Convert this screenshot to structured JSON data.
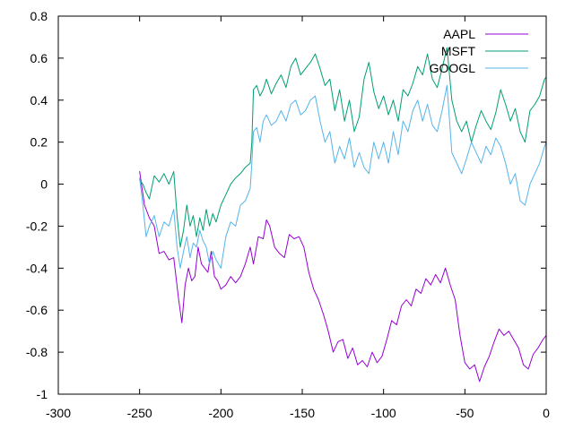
{
  "chart_data": {
    "type": "line",
    "title": "",
    "xlabel": "",
    "ylabel": "",
    "xlim": [
      -300,
      0
    ],
    "ylim": [
      -1,
      0.8
    ],
    "grid": false,
    "legend_position": "top-right",
    "x_ticks": [
      -300,
      -250,
      -200,
      -150,
      -100,
      -50,
      0
    ],
    "x_tick_labels": [
      "-300",
      "-250",
      "-200",
      "-150",
      "-100",
      "-50",
      "0"
    ],
    "y_ticks": [
      0.8,
      0.6,
      0.4,
      0.2,
      0,
      -0.2,
      -0.4,
      -0.6,
      -0.8,
      -1
    ],
    "y_tick_labels": [
      "0.8",
      "0.6",
      "0.4",
      "0.2",
      "0",
      "-0.2",
      "-0.4",
      "-0.6",
      "-0.8",
      "-1"
    ],
    "series": [
      {
        "name": "AAPL",
        "color": "#9400d3",
        "x": [
          -250,
          -247,
          -244,
          -241,
          -238,
          -235,
          -232,
          -229,
          -226,
          -224,
          -222,
          -220,
          -218,
          -216,
          -214,
          -212,
          -210,
          -208,
          -206,
          -204,
          -202,
          -200,
          -197,
          -194,
          -191,
          -188,
          -185,
          -182,
          -180,
          -177,
          -174,
          -172,
          -170,
          -167,
          -164,
          -161,
          -158,
          -155,
          -152,
          -149,
          -146,
          -143,
          -140,
          -137,
          -134,
          -131,
          -128,
          -125,
          -122,
          -119,
          -116,
          -113,
          -110,
          -107,
          -104,
          -101,
          -98,
          -95,
          -92,
          -89,
          -86,
          -83,
          -80,
          -77,
          -74,
          -71,
          -68,
          -65,
          -62,
          -59,
          -56,
          -53,
          -50,
          -47,
          -44,
          -41,
          -38,
          -35,
          -32,
          -29,
          -26,
          -23,
          -20,
          -17,
          -14,
          -11,
          -8,
          -5,
          -2,
          0
        ],
        "y": [
          0.06,
          -0.1,
          -0.16,
          -0.2,
          -0.33,
          -0.32,
          -0.36,
          -0.35,
          -0.55,
          -0.66,
          -0.48,
          -0.4,
          -0.46,
          -0.44,
          -0.3,
          -0.38,
          -0.4,
          -0.42,
          -0.32,
          -0.44,
          -0.46,
          -0.5,
          -0.48,
          -0.44,
          -0.47,
          -0.44,
          -0.38,
          -0.3,
          -0.38,
          -0.25,
          -0.26,
          -0.17,
          -0.2,
          -0.3,
          -0.33,
          -0.35,
          -0.24,
          -0.26,
          -0.25,
          -0.3,
          -0.42,
          -0.5,
          -0.55,
          -0.62,
          -0.7,
          -0.8,
          -0.75,
          -0.74,
          -0.83,
          -0.78,
          -0.86,
          -0.84,
          -0.87,
          -0.8,
          -0.85,
          -0.82,
          -0.74,
          -0.65,
          -0.67,
          -0.58,
          -0.55,
          -0.58,
          -0.5,
          -0.52,
          -0.45,
          -0.48,
          -0.43,
          -0.47,
          -0.4,
          -0.48,
          -0.55,
          -0.72,
          -0.85,
          -0.88,
          -0.86,
          -0.94,
          -0.87,
          -0.82,
          -0.75,
          -0.69,
          -0.72,
          -0.7,
          -0.74,
          -0.78,
          -0.86,
          -0.88,
          -0.81,
          -0.78,
          -0.74,
          -0.72
        ]
      },
      {
        "name": "MSFT",
        "color": "#009e73",
        "x": [
          -250,
          -248,
          -246,
          -244,
          -241,
          -238,
          -235,
          -232,
          -229,
          -227,
          -225,
          -223,
          -221,
          -219,
          -217,
          -215,
          -213,
          -211,
          -209,
          -207,
          -205,
          -203,
          -200,
          -197,
          -194,
          -191,
          -188,
          -185,
          -182,
          -181,
          -180,
          -178,
          -176,
          -174,
          -172,
          -169,
          -166,
          -163,
          -160,
          -157,
          -154,
          -151,
          -148,
          -145,
          -142,
          -139,
          -136,
          -133,
          -130,
          -127,
          -124,
          -121,
          -118,
          -115,
          -112,
          -109,
          -106,
          -103,
          -100,
          -97,
          -94,
          -91,
          -88,
          -85,
          -82,
          -79,
          -76,
          -73,
          -70,
          -67,
          -64,
          -61,
          -58,
          -55,
          -52,
          -49,
          -46,
          -43,
          -40,
          -37,
          -34,
          -31,
          -28,
          -25,
          -22,
          -19,
          -16,
          -13,
          -10,
          -7,
          -4,
          -1,
          0
        ],
        "y": [
          0.02,
          0.0,
          -0.04,
          -0.07,
          0.04,
          0.01,
          0.05,
          0.0,
          0.06,
          -0.15,
          -0.3,
          -0.22,
          -0.1,
          -0.2,
          -0.15,
          -0.25,
          -0.16,
          -0.22,
          -0.12,
          -0.2,
          -0.14,
          -0.18,
          -0.1,
          -0.05,
          0.0,
          0.03,
          0.05,
          0.08,
          0.1,
          0.2,
          0.45,
          0.47,
          0.42,
          0.45,
          0.5,
          0.43,
          0.48,
          0.52,
          0.46,
          0.56,
          0.6,
          0.52,
          0.55,
          0.58,
          0.62,
          0.55,
          0.47,
          0.5,
          0.35,
          0.45,
          0.3,
          0.4,
          0.25,
          0.32,
          0.5,
          0.58,
          0.44,
          0.36,
          0.42,
          0.33,
          0.4,
          0.3,
          0.45,
          0.42,
          0.48,
          0.56,
          0.52,
          0.62,
          0.5,
          0.46,
          0.55,
          0.65,
          0.4,
          0.3,
          0.25,
          0.3,
          0.2,
          0.28,
          0.35,
          0.3,
          0.26,
          0.34,
          0.45,
          0.38,
          0.3,
          0.36,
          0.25,
          0.2,
          0.35,
          0.38,
          0.42,
          0.5,
          0.51
        ]
      },
      {
        "name": "GOOGL",
        "color": "#56b4e9",
        "x": [
          -250,
          -248,
          -246,
          -244,
          -241,
          -238,
          -235,
          -232,
          -229,
          -227,
          -225,
          -223,
          -221,
          -219,
          -217,
          -215,
          -213,
          -211,
          -209,
          -207,
          -205,
          -203,
          -200,
          -197,
          -194,
          -191,
          -188,
          -185,
          -182,
          -181,
          -180,
          -178,
          -176,
          -174,
          -172,
          -169,
          -166,
          -163,
          -160,
          -157,
          -154,
          -151,
          -148,
          -145,
          -142,
          -139,
          -136,
          -133,
          -130,
          -127,
          -124,
          -121,
          -118,
          -115,
          -112,
          -109,
          -106,
          -103,
          -100,
          -97,
          -94,
          -91,
          -88,
          -85,
          -82,
          -79,
          -76,
          -73,
          -70,
          -67,
          -64,
          -61,
          -58,
          -55,
          -52,
          -49,
          -46,
          -43,
          -40,
          -37,
          -34,
          -31,
          -28,
          -25,
          -22,
          -19,
          -16,
          -13,
          -10,
          -7,
          -4,
          -1,
          0
        ],
        "y": [
          0.03,
          -0.1,
          -0.25,
          -0.2,
          -0.15,
          -0.25,
          -0.18,
          -0.2,
          -0.12,
          -0.3,
          -0.4,
          -0.32,
          -0.25,
          -0.35,
          -0.28,
          -0.3,
          -0.22,
          -0.27,
          -0.3,
          -0.38,
          -0.32,
          -0.36,
          -0.4,
          -0.25,
          -0.18,
          -0.2,
          -0.1,
          -0.08,
          -0.02,
          0.1,
          0.25,
          0.27,
          0.2,
          0.3,
          0.33,
          0.28,
          0.3,
          0.35,
          0.3,
          0.38,
          0.4,
          0.33,
          0.35,
          0.4,
          0.42,
          0.3,
          0.2,
          0.25,
          0.1,
          0.18,
          0.12,
          0.22,
          0.08,
          0.15,
          0.08,
          0.05,
          0.2,
          0.12,
          0.2,
          0.1,
          0.25,
          0.14,
          0.3,
          0.25,
          0.35,
          0.4,
          0.3,
          0.38,
          0.28,
          0.25,
          0.35,
          0.47,
          0.15,
          0.1,
          0.05,
          0.12,
          0.2,
          0.15,
          0.1,
          0.18,
          0.14,
          0.22,
          0.18,
          0.1,
          0.0,
          0.05,
          -0.08,
          -0.1,
          0.0,
          0.05,
          0.1,
          0.18,
          0.2
        ]
      }
    ]
  }
}
